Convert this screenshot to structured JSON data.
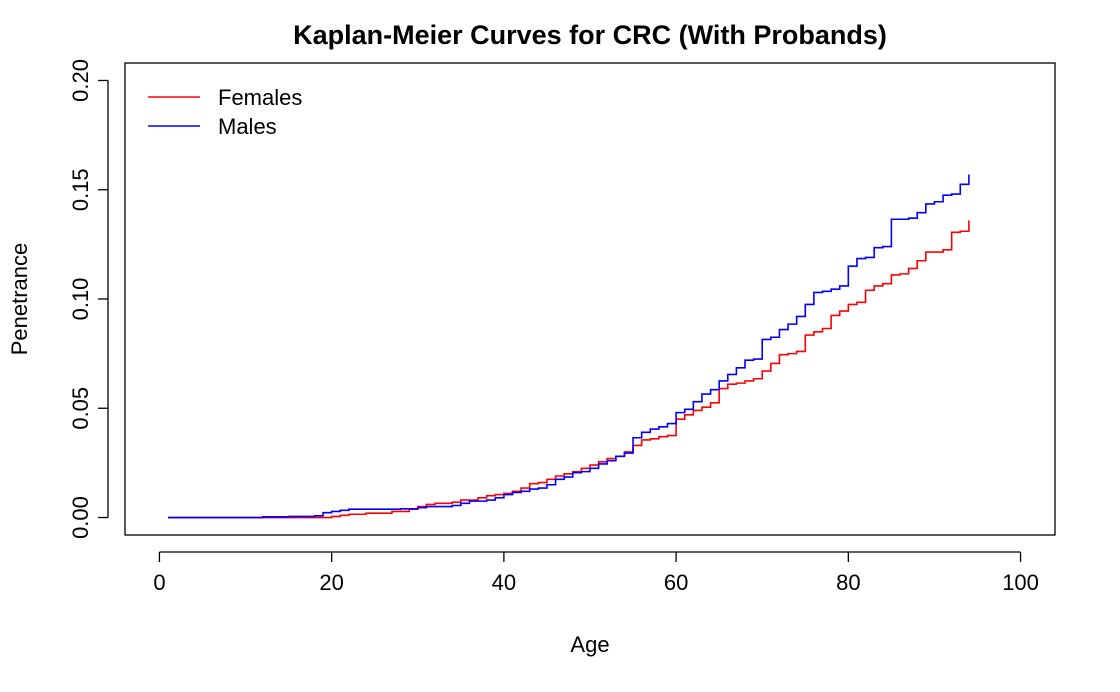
{
  "chart_data": {
    "type": "line",
    "title": "Kaplan-Meier Curves for CRC (With Probands)",
    "xlabel": "Age",
    "ylabel": "Penetrance",
    "xlim": [
      -4,
      104
    ],
    "ylim": [
      -0.008,
      0.208
    ],
    "xticks": [
      0,
      20,
      40,
      60,
      80,
      100
    ],
    "xtick_labels": [
      "0",
      "20",
      "40",
      "60",
      "80",
      "100"
    ],
    "yticks": [
      0.0,
      0.05,
      0.1,
      0.15,
      0.2
    ],
    "ytick_labels": [
      "0.00",
      "0.05",
      "0.10",
      "0.15",
      "0.20"
    ],
    "grid": false,
    "legend_position": "top-left",
    "series": [
      {
        "name": "Females",
        "color": "#ff0000",
        "step": true,
        "points": [
          [
            1,
            0.0
          ],
          [
            18,
            0.0
          ],
          [
            20,
            0.0005
          ],
          [
            21,
            0.001
          ],
          [
            22,
            0.0015
          ],
          [
            24,
            0.002
          ],
          [
            27,
            0.0028
          ],
          [
            29,
            0.0038
          ],
          [
            30,
            0.005
          ],
          [
            31,
            0.006
          ],
          [
            32,
            0.0065
          ],
          [
            34,
            0.007
          ],
          [
            35,
            0.008
          ],
          [
            37,
            0.009
          ],
          [
            38,
            0.01
          ],
          [
            39,
            0.0105
          ],
          [
            40,
            0.011
          ],
          [
            41,
            0.012
          ],
          [
            42,
            0.0135
          ],
          [
            43,
            0.0155
          ],
          [
            44,
            0.016
          ],
          [
            45,
            0.0175
          ],
          [
            46,
            0.019
          ],
          [
            47,
            0.02
          ],
          [
            48,
            0.021
          ],
          [
            49,
            0.0225
          ],
          [
            50,
            0.024
          ],
          [
            51,
            0.0255
          ],
          [
            52,
            0.027
          ],
          [
            53,
            0.028
          ],
          [
            54,
            0.03
          ],
          [
            55,
            0.033
          ],
          [
            56,
            0.0355
          ],
          [
            57,
            0.036
          ],
          [
            58,
            0.037
          ],
          [
            59,
            0.0375
          ],
          [
            60,
            0.045
          ],
          [
            61,
            0.047
          ],
          [
            62,
            0.049
          ],
          [
            63,
            0.0505
          ],
          [
            64,
            0.0525
          ],
          [
            65,
            0.059
          ],
          [
            66,
            0.061
          ],
          [
            67,
            0.0615
          ],
          [
            68,
            0.0625
          ],
          [
            69,
            0.0635
          ],
          [
            70,
            0.067
          ],
          [
            71,
            0.0705
          ],
          [
            72,
            0.0745
          ],
          [
            73,
            0.075
          ],
          [
            74,
            0.076
          ],
          [
            75,
            0.0835
          ],
          [
            76,
            0.085
          ],
          [
            77,
            0.0865
          ],
          [
            78,
            0.0925
          ],
          [
            79,
            0.0945
          ],
          [
            80,
            0.0975
          ],
          [
            81,
            0.0985
          ],
          [
            82,
            0.104
          ],
          [
            83,
            0.106
          ],
          [
            84,
            0.107
          ],
          [
            85,
            0.111
          ],
          [
            86,
            0.1115
          ],
          [
            87,
            0.114
          ],
          [
            88,
            0.1175
          ],
          [
            89,
            0.1215
          ],
          [
            90,
            0.1215
          ],
          [
            91,
            0.1225
          ],
          [
            92,
            0.1305
          ],
          [
            93,
            0.131
          ],
          [
            94,
            0.136
          ]
        ]
      },
      {
        "name": "Males",
        "color": "#0000ff",
        "step": true,
        "points": [
          [
            1,
            0.0
          ],
          [
            10,
            0.0
          ],
          [
            12,
            0.0003
          ],
          [
            15,
            0.0005
          ],
          [
            18,
            0.0008
          ],
          [
            19,
            0.0022
          ],
          [
            20,
            0.0028
          ],
          [
            21,
            0.0033
          ],
          [
            22,
            0.0038
          ],
          [
            28,
            0.004
          ],
          [
            30,
            0.0045
          ],
          [
            31,
            0.005
          ],
          [
            34,
            0.0055
          ],
          [
            35,
            0.0065
          ],
          [
            36,
            0.0075
          ],
          [
            38,
            0.008
          ],
          [
            39,
            0.009
          ],
          [
            40,
            0.0105
          ],
          [
            41,
            0.0115
          ],
          [
            42,
            0.012
          ],
          [
            43,
            0.013
          ],
          [
            44,
            0.0135
          ],
          [
            45,
            0.015
          ],
          [
            46,
            0.0175
          ],
          [
            47,
            0.0185
          ],
          [
            48,
            0.0205
          ],
          [
            49,
            0.021
          ],
          [
            50,
            0.0225
          ],
          [
            51,
            0.0245
          ],
          [
            52,
            0.026
          ],
          [
            53,
            0.028
          ],
          [
            54,
            0.0295
          ],
          [
            55,
            0.0365
          ],
          [
            56,
            0.039
          ],
          [
            57,
            0.0405
          ],
          [
            58,
            0.0415
          ],
          [
            59,
            0.043
          ],
          [
            60,
            0.048
          ],
          [
            61,
            0.0495
          ],
          [
            62,
            0.053
          ],
          [
            63,
            0.0565
          ],
          [
            64,
            0.0585
          ],
          [
            65,
            0.0625
          ],
          [
            66,
            0.0655
          ],
          [
            67,
            0.0685
          ],
          [
            68,
            0.072
          ],
          [
            69,
            0.0725
          ],
          [
            70,
            0.0815
          ],
          [
            71,
            0.0825
          ],
          [
            72,
            0.086
          ],
          [
            73,
            0.0885
          ],
          [
            74,
            0.092
          ],
          [
            75,
            0.0975
          ],
          [
            76,
            0.103
          ],
          [
            77,
            0.1035
          ],
          [
            78,
            0.1045
          ],
          [
            79,
            0.106
          ],
          [
            80,
            0.115
          ],
          [
            81,
            0.1185
          ],
          [
            82,
            0.119
          ],
          [
            83,
            0.1235
          ],
          [
            84,
            0.124
          ],
          [
            85,
            0.1365
          ],
          [
            87,
            0.137
          ],
          [
            88,
            0.1395
          ],
          [
            89,
            0.1435
          ],
          [
            90,
            0.1445
          ],
          [
            91,
            0.1475
          ],
          [
            92,
            0.148
          ],
          [
            93,
            0.1525
          ],
          [
            94,
            0.157
          ]
        ]
      }
    ]
  }
}
